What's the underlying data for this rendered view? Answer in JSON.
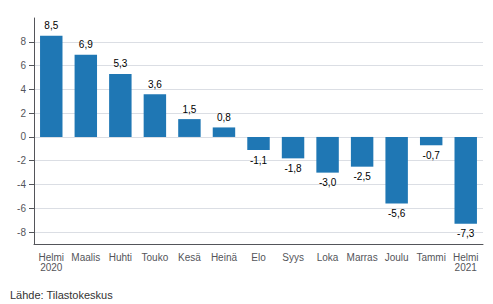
{
  "chart_data": {
    "type": "bar",
    "categories": [
      "Helmi\n2020",
      "Maalis",
      "Huhti",
      "Touko",
      "Kesä",
      "Heinä",
      "Elo",
      "Syys",
      "Loka",
      "Marras",
      "Joulu",
      "Tammi",
      "Helmi\n2021"
    ],
    "values": [
      8.5,
      6.9,
      5.3,
      3.6,
      1.5,
      0.8,
      -1.1,
      -1.8,
      -3.0,
      -2.5,
      -5.6,
      -0.7,
      -7.3
    ],
    "value_labels": [
      "8,5",
      "6,9",
      "5,3",
      "3,6",
      "1,5",
      "0,8",
      "-1,1",
      "-1,8",
      "-3,0",
      "-2,5",
      "-5,6",
      "-0,7",
      "-7,3"
    ],
    "data_labels": true,
    "color": "#1F77B4",
    "ylim": [
      -9,
      10
    ],
    "yticks": [
      -8,
      -6,
      -4,
      -2,
      0,
      2,
      4,
      6,
      8
    ],
    "grid": true,
    "annotations": [
      "Lähde: Tilastokeskus"
    ]
  }
}
